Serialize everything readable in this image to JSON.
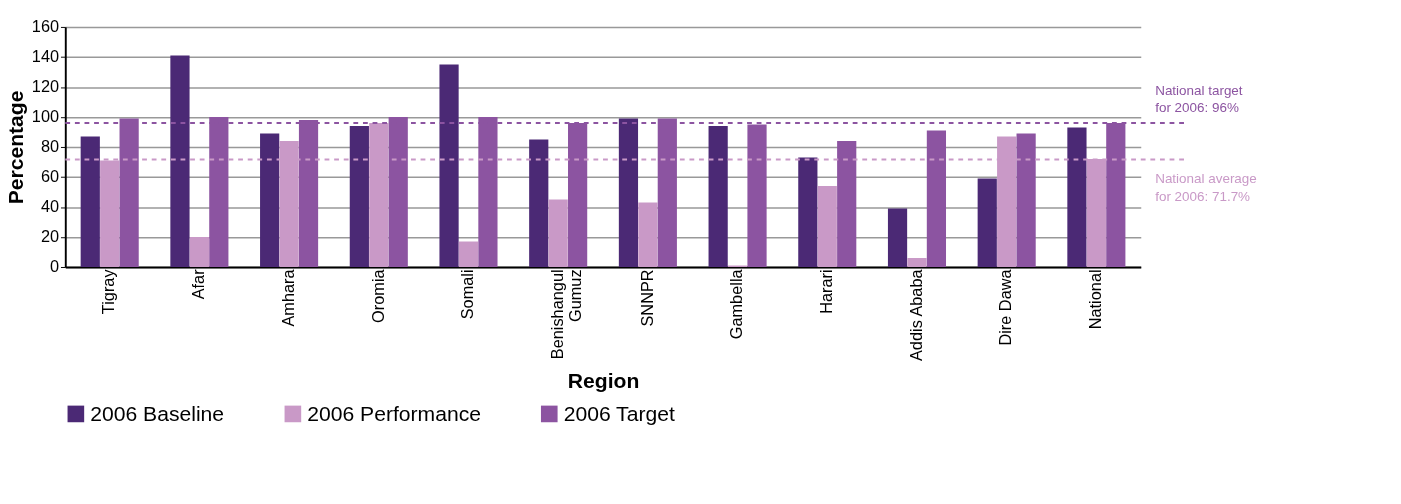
{
  "chart_data": {
    "type": "bar",
    "xlabel": "Region",
    "ylabel": "Percentage",
    "categories": [
      "Tigray",
      "Afar",
      "Amhara",
      "Oromia",
      "Somali",
      "Benishangul Gumuz",
      "SNNPR",
      "Gambella",
      "Harari",
      "Addis Ababa",
      "Dire Dawa",
      "National"
    ],
    "series": [
      {
        "name": "2006 Baseline",
        "color": "#4b2975",
        "values": [
          87,
          141,
          89,
          94,
          135,
          85,
          99,
          94,
          73,
          39,
          59,
          93
        ]
      },
      {
        "name": "2006 Performance",
        "color": "#c999c7",
        "values": [
          71,
          20,
          84,
          96,
          17,
          45,
          43,
          1,
          54,
          6,
          87,
          72
        ]
      },
      {
        "name": "2006 Target",
        "color": "#8c54a1",
        "values": [
          99,
          100,
          98,
          100,
          100,
          96,
          99,
          95,
          84,
          91,
          89,
          96
        ]
      }
    ],
    "ylim": [
      0,
      160
    ],
    "yticks": [
      0,
      20,
      40,
      60,
      80,
      100,
      120,
      140,
      160
    ],
    "grid": "y",
    "legend": "bottom",
    "ref_lines": [
      {
        "axis": "y",
        "value": 96,
        "label": "National target for 2006: 96%",
        "color": "#8c54a1",
        "line_style": "dashed"
      },
      {
        "axis": "y",
        "value": 71.7,
        "label": "National average for 2006: 71.7%",
        "color": "#c999c7",
        "line_style": "dashed"
      }
    ]
  }
}
